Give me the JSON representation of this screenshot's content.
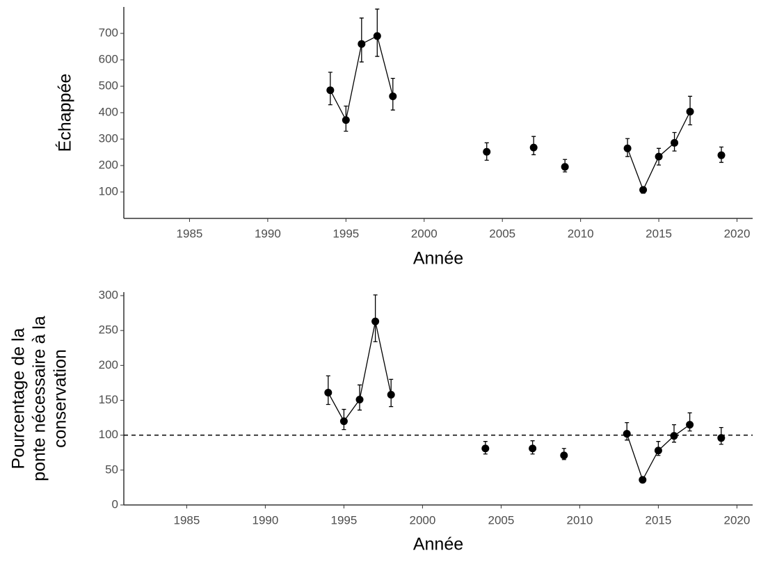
{
  "chart_data": [
    {
      "type": "line",
      "xlabel": "Année",
      "ylabel": [
        "Échappée"
      ],
      "x": [
        1994,
        1995,
        1996,
        1997,
        1998,
        2004,
        2007,
        2009,
        2013,
        2014,
        2015,
        2016,
        2017,
        2019
      ],
      "series": [
        {
          "color": "#000000",
          "values": [
            485,
            372,
            660,
            690,
            462,
            252,
            268,
            195,
            265,
            108,
            234,
            286,
            404,
            239
          ],
          "lower": [
            430,
            330,
            592,
            613,
            410,
            220,
            241,
            176,
            234,
            95,
            202,
            255,
            354,
            212
          ],
          "upper": [
            553,
            425,
            758,
            792,
            530,
            286,
            310,
            223,
            302,
            118,
            265,
            325,
            462,
            270
          ]
        }
      ],
      "xlim": [
        1980.8,
        2021
      ],
      "xticks": [
        1985,
        1990,
        1995,
        2000,
        2005,
        2010,
        2015,
        2020
      ],
      "ylim": [
        0,
        800
      ],
      "yticks": [
        100,
        200,
        300,
        400,
        500,
        600,
        700
      ]
    },
    {
      "type": "line",
      "xlabel": "Année",
      "ylabel": [
        "Pourcentage de la",
        "ponte nécessaire à la",
        "conservation"
      ],
      "x": [
        1994,
        1995,
        1996,
        1997,
        1998,
        2004,
        2007,
        2009,
        2013,
        2014,
        2015,
        2016,
        2017,
        2019
      ],
      "series": [
        {
          "color": "#000000",
          "values": [
            161,
            120,
            151,
            263,
            158,
            81,
            81,
            71,
            102,
            36,
            78,
            99,
            115,
            96
          ],
          "lower": [
            144,
            108,
            136,
            234,
            141,
            73,
            73,
            65,
            93,
            33,
            71,
            90,
            106,
            87
          ],
          "upper": [
            185,
            137,
            172,
            301,
            180,
            91,
            92,
            81,
            118,
            39,
            91,
            115,
            132,
            111
          ]
        }
      ],
      "hline": 100,
      "xlim": [
        1981,
        2021
      ],
      "xticks": [
        1985,
        1990,
        1995,
        2000,
        2005,
        2010,
        2015,
        2020
      ],
      "ylim": [
        0,
        305
      ],
      "yticks": [
        0,
        50,
        100,
        150,
        200,
        250,
        300
      ]
    }
  ]
}
